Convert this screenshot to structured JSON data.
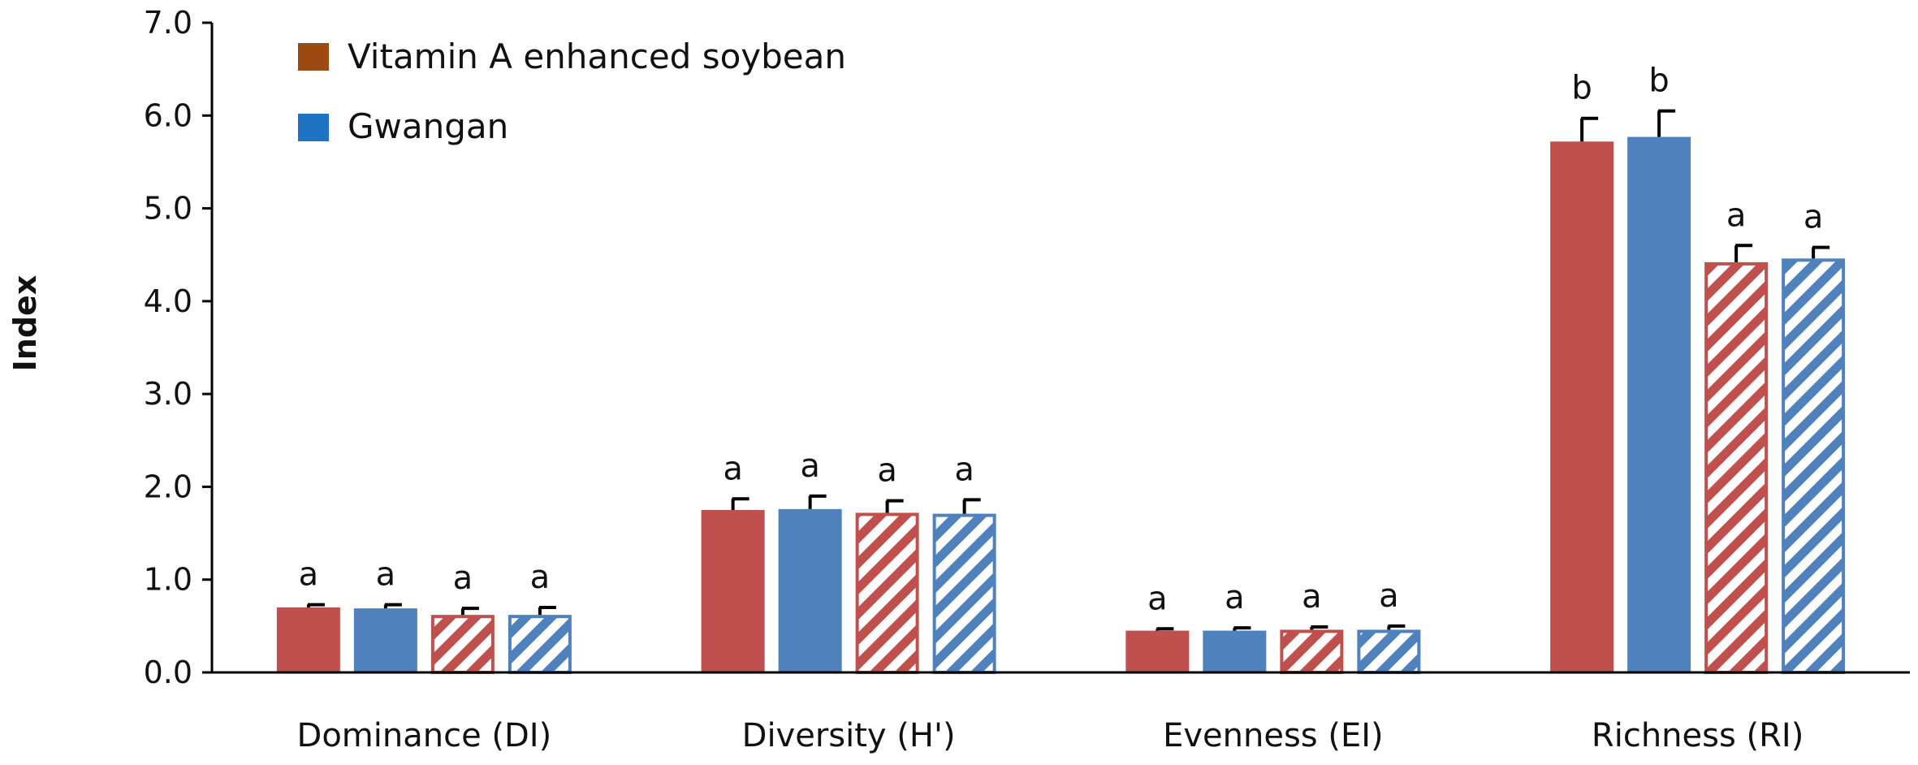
{
  "chart_data": {
    "type": "bar",
    "title": "",
    "xlabel": "",
    "ylabel": "Index",
    "ylim": [
      0,
      7
    ],
    "y_ticks": [
      "0.0",
      "1.0",
      "2.0",
      "3.0",
      "4.0",
      "5.0",
      "6.0",
      "7.0"
    ],
    "grid": false,
    "legend_position": "top-left",
    "categories": [
      "Dominance (DI)",
      "Diversity (H')",
      "Evenness (EI)",
      "Richness (RI)"
    ],
    "legend": [
      {
        "label": "Vitamin A enhanced soybean",
        "color": "#9c4a12"
      },
      {
        "label": "Gwangan",
        "color": "#1f73c4"
      }
    ],
    "series": [
      {
        "color": "#c0504d",
        "style": "solid",
        "values": [
          0.7,
          1.75,
          0.45,
          5.72
        ],
        "errors": [
          0.03,
          0.12,
          0.02,
          0.25
        ],
        "labels": [
          "a",
          "a",
          "a",
          "b"
        ]
      },
      {
        "color": "#4f81bd",
        "style": "solid",
        "values": [
          0.69,
          1.76,
          0.45,
          5.77
        ],
        "errors": [
          0.04,
          0.14,
          0.03,
          0.28
        ],
        "labels": [
          "a",
          "a",
          "a",
          "b"
        ]
      },
      {
        "color": "#c0504d",
        "style": "hatched",
        "values": [
          0.62,
          1.72,
          0.46,
          4.42
        ],
        "errors": [
          0.07,
          0.13,
          0.03,
          0.18
        ],
        "labels": [
          "a",
          "a",
          "a",
          "a"
        ]
      },
      {
        "color": "#4f81bd",
        "style": "hatched",
        "values": [
          0.62,
          1.71,
          0.46,
          4.46
        ],
        "errors": [
          0.08,
          0.15,
          0.04,
          0.12
        ],
        "labels": [
          "a",
          "a",
          "a",
          "a"
        ]
      }
    ]
  }
}
